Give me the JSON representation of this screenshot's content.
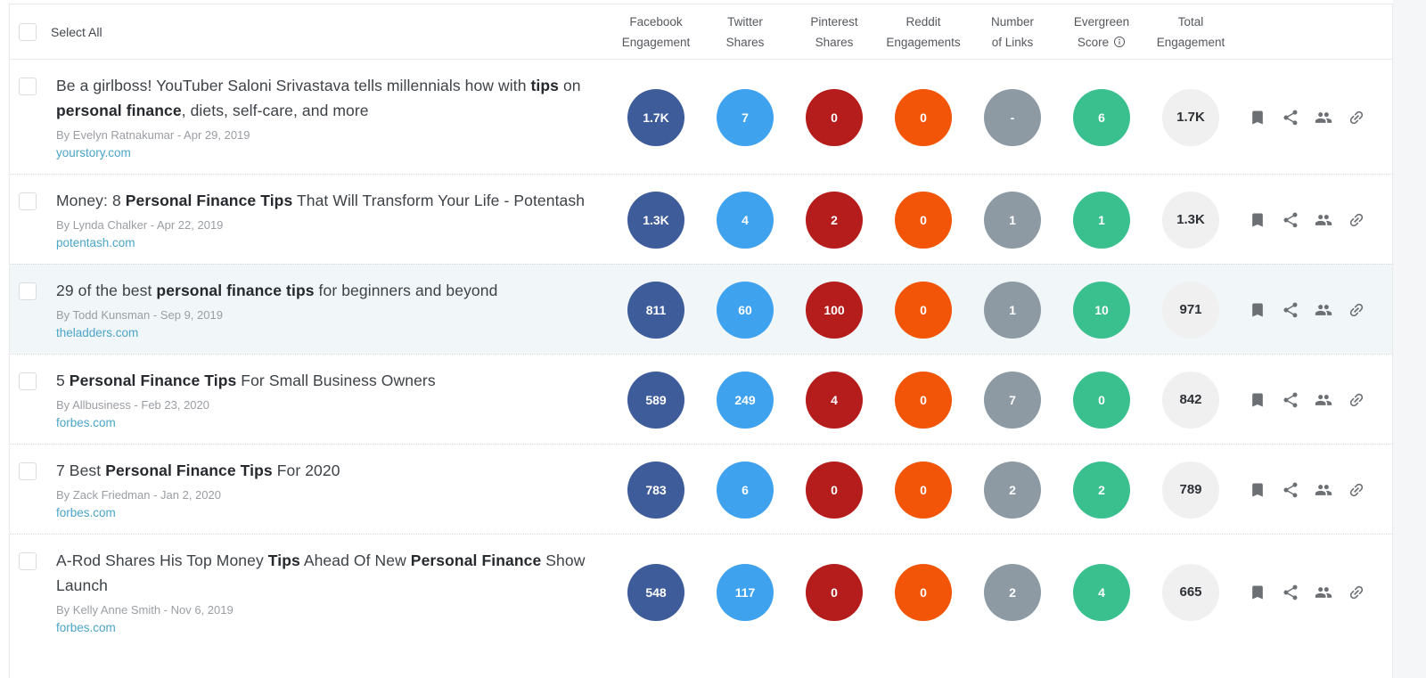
{
  "header": {
    "select_all_label": "Select All",
    "columns": [
      {
        "line1": "Facebook",
        "line2": "Engagement"
      },
      {
        "line1": "Twitter",
        "line2": "Shares"
      },
      {
        "line1": "Pinterest",
        "line2": "Shares"
      },
      {
        "line1": "Reddit",
        "line2": "Engagements"
      },
      {
        "line1": "Number",
        "line2": "of Links"
      },
      {
        "line1": "Evergreen",
        "line2": "Score",
        "info_icon": "info-icon"
      },
      {
        "line1": "Total",
        "line2": "Engagement"
      }
    ]
  },
  "metric_colors": {
    "facebook": "#3e5c9a",
    "twitter": "#3fa2ee",
    "pinterest": "#b51c1c",
    "reddit": "#f25408",
    "links": "#8d9aa4",
    "evergreen": "#3abf8e",
    "total_bg": "#f0f0f1",
    "total_text": "#2e3236"
  },
  "action_icons": [
    "bookmark-icon",
    "share-icon",
    "audience-icon",
    "link-icon"
  ],
  "rows": [
    {
      "title_segments": [
        {
          "text": "Be a girlboss! YouTuber Saloni Srivastava tells millennials how with ",
          "bold": false
        },
        {
          "text": "tips",
          "bold": true
        },
        {
          "text": " on ",
          "bold": false
        },
        {
          "text": "personal finance",
          "bold": true
        },
        {
          "text": ", diets, self-care, and more",
          "bold": false
        }
      ],
      "byline": "By Evelyn Ratnakumar - Apr 29, 2019",
      "domain": "yourstory.com",
      "metrics": [
        "1.7K",
        "7",
        "0",
        "0",
        "-",
        "6"
      ],
      "total": "1.7K",
      "highlighted": false
    },
    {
      "title_segments": [
        {
          "text": "Money: 8 ",
          "bold": false
        },
        {
          "text": "Personal Finance Tips",
          "bold": true
        },
        {
          "text": " That Will Transform Your Life - Potentash",
          "bold": false
        }
      ],
      "byline": "By Lynda Chalker - Apr 22, 2019",
      "domain": "potentash.com",
      "metrics": [
        "1.3K",
        "4",
        "2",
        "0",
        "1",
        "1"
      ],
      "total": "1.3K",
      "highlighted": false
    },
    {
      "title_segments": [
        {
          "text": "29 of the best ",
          "bold": false
        },
        {
          "text": "personal finance tips",
          "bold": true
        },
        {
          "text": " for beginners and beyond",
          "bold": false
        }
      ],
      "byline": "By Todd Kunsman - Sep 9, 2019",
      "domain": "theladders.com",
      "metrics": [
        "811",
        "60",
        "100",
        "0",
        "1",
        "10"
      ],
      "total": "971",
      "highlighted": true
    },
    {
      "title_segments": [
        {
          "text": "5 ",
          "bold": false
        },
        {
          "text": "Personal Finance Tips",
          "bold": true
        },
        {
          "text": " For Small Business Owners",
          "bold": false
        }
      ],
      "byline": "By Allbusiness - Feb 23, 2020",
      "domain": "forbes.com",
      "metrics": [
        "589",
        "249",
        "4",
        "0",
        "7",
        "0"
      ],
      "total": "842",
      "highlighted": false
    },
    {
      "title_segments": [
        {
          "text": "7 Best ",
          "bold": false
        },
        {
          "text": "Personal Finance Tips",
          "bold": true
        },
        {
          "text": " For 2020",
          "bold": false
        }
      ],
      "byline": "By Zack Friedman - Jan 2, 2020",
      "domain": "forbes.com",
      "metrics": [
        "783",
        "6",
        "0",
        "0",
        "2",
        "2"
      ],
      "total": "789",
      "highlighted": false
    },
    {
      "title_segments": [
        {
          "text": "A-Rod Shares His Top Money ",
          "bold": false
        },
        {
          "text": "Tips",
          "bold": true
        },
        {
          "text": " Ahead Of New ",
          "bold": false
        },
        {
          "text": "Personal Finance",
          "bold": true
        },
        {
          "text": " Show Launch",
          "bold": false
        }
      ],
      "byline": "By Kelly Anne Smith - Nov 6, 2019",
      "domain": "forbes.com",
      "metrics": [
        "548",
        "117",
        "0",
        "0",
        "2",
        "4"
      ],
      "total": "665",
      "highlighted": false
    }
  ]
}
